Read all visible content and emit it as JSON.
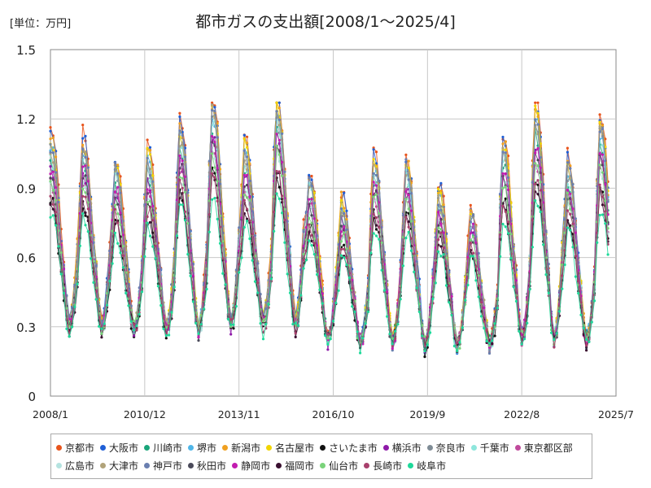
{
  "chart_data": {
    "type": "line",
    "title": "都市ガスの支出額[2008/1～2025/4]",
    "unit_label": "[単位：万円]",
    "xlabel": "",
    "ylabel": "",
    "ylim": [
      0,
      1.5
    ],
    "yticks": [
      "0",
      "0.3",
      "0.6",
      "0.9",
      "1.2",
      "1.5"
    ],
    "x_start": "2008/1",
    "x_end": "2025/7",
    "xticks": [
      "2008/1",
      "2010/12",
      "2013/11",
      "2016/10",
      "2019/9",
      "2022/8",
      "2025/7"
    ],
    "grid": true,
    "legend_position": "bottom",
    "winter_peaks": [
      {
        "year": 2008,
        "peak": 1.1,
        "min": 0.32
      },
      {
        "year": 2009,
        "peak": 1.09,
        "min": 0.31
      },
      {
        "year": 2010,
        "peak": 0.99,
        "min": 0.3
      },
      {
        "year": 2011,
        "peak": 1.03,
        "min": 0.3
      },
      {
        "year": 2012,
        "peak": 1.15,
        "min": 0.3
      },
      {
        "year": 2013,
        "peak": 1.26,
        "min": 0.33
      },
      {
        "year": 2014,
        "peak": 1.07,
        "min": 0.34
      },
      {
        "year": 2015,
        "peak": 1.26,
        "min": 0.33
      },
      {
        "year": 2016,
        "peak": 0.94,
        "min": 0.25
      },
      {
        "year": 2017,
        "peak": 0.83,
        "min": 0.24
      },
      {
        "year": 2018,
        "peak": 1.01,
        "min": 0.24
      },
      {
        "year": 2019,
        "peak": 1.0,
        "min": 0.22
      },
      {
        "year": 2020,
        "peak": 0.88,
        "min": 0.22
      },
      {
        "year": 2021,
        "peak": 0.79,
        "min": 0.23
      },
      {
        "year": 2022,
        "peak": 1.09,
        "min": 0.26
      },
      {
        "year": 2023,
        "peak": 1.22,
        "min": 0.25
      },
      {
        "year": 2024,
        "peak": 1.0,
        "min": 0.24
      },
      {
        "year": 2025,
        "peak": 1.17,
        "min": null
      }
    ],
    "series": [
      {
        "name": "京都市",
        "color": "#e8541c",
        "scale": 1.06,
        "phase": 0.0
      },
      {
        "name": "大阪市",
        "color": "#1f5fd6",
        "scale": 1.04,
        "phase": 0.3
      },
      {
        "name": "川崎市",
        "color": "#1aa57a",
        "scale": 0.9,
        "phase": 0.6
      },
      {
        "name": "堺市",
        "color": "#4fb6e8",
        "scale": 0.97,
        "phase": 0.9
      },
      {
        "name": "新潟市",
        "color": "#f0a020",
        "scale": 1.02,
        "phase": 1.2
      },
      {
        "name": "名古屋市",
        "color": "#f2d500",
        "scale": 1.0,
        "phase": 1.5
      },
      {
        "name": "さいたま市",
        "color": "#111111",
        "scale": 0.72,
        "phase": 1.8
      },
      {
        "name": "横浜市",
        "color": "#8e1aa8",
        "scale": 0.86,
        "phase": 2.1
      },
      {
        "name": "奈良市",
        "color": "#7f8c96",
        "scale": 0.95,
        "phase": 2.4
      },
      {
        "name": "千葉市",
        "color": "#8ee6dc",
        "scale": 0.93,
        "phase": 2.7
      },
      {
        "name": "東京都区部",
        "color": "#c04a9c",
        "scale": 0.82,
        "phase": 3.0
      },
      {
        "name": "広島市",
        "color": "#b5e3e0",
        "scale": 0.8,
        "phase": 3.3
      },
      {
        "name": "大津市",
        "color": "#b1a37a",
        "scale": 0.96,
        "phase": 3.6
      },
      {
        "name": "神戸市",
        "color": "#6a7fb0",
        "scale": 0.98,
        "phase": 3.9
      },
      {
        "name": "秋田市",
        "color": "#4a4a5a",
        "scale": 0.84,
        "phase": 4.2
      },
      {
        "name": "静岡市",
        "color": "#c21cb0",
        "scale": 0.88,
        "phase": 4.5
      },
      {
        "name": "福岡市",
        "color": "#3a1030",
        "scale": 0.7,
        "phase": 4.8
      },
      {
        "name": "仙台市",
        "color": "#7ad37a",
        "scale": 0.8,
        "phase": 5.1
      },
      {
        "name": "長崎市",
        "color": "#a8406c",
        "scale": 0.74,
        "phase": 5.4
      },
      {
        "name": "岐阜市",
        "color": "#1ed99a",
        "scale": 0.64,
        "phase": 5.7
      }
    ]
  }
}
